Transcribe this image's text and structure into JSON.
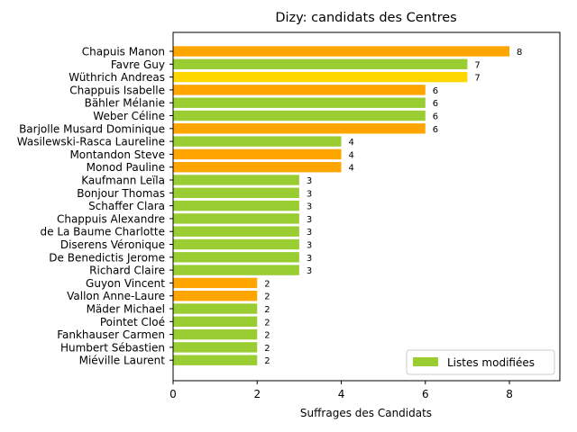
{
  "chart_data": {
    "type": "bar",
    "orientation": "horizontal",
    "title": "Dizy: candidats des Centres",
    "xlabel": "Suffrages des Candidats",
    "ylabel": "",
    "xlim": [
      0,
      9.2
    ],
    "xticks": [
      0,
      2,
      4,
      6,
      8
    ],
    "grid": false,
    "legend": {
      "placement": "lower right",
      "entries": [
        "Listes modifiées"
      ]
    },
    "colors": {
      "orange": "#ffa500",
      "green": "#9acd32",
      "gold": "#ffd700",
      "axis": "#000000"
    },
    "categories": [
      "Chapuis Manon",
      "Favre Guy",
      "Wüthrich Andreas",
      "Chappuis Isabelle",
      "Bähler Mélanie",
      "Weber Céline",
      "Barjolle Musard Dominique",
      "Wasilewski-Rasca Laureline",
      "Montandon Steve",
      "Monod Pauline",
      "Kaufmann Leïla",
      "Bonjour Thomas",
      "Schaffer Clara",
      "Chappuis Alexandre",
      "de La Baume Charlotte",
      "Diserens Véronique",
      "De Benedictis Jerome",
      "Richard Claire",
      "Guyon Vincent",
      "Vallon Anne-Laure",
      "Mäder Michael",
      "Pointet Cloé",
      "Fankhauser Carmen",
      "Humbert Sébastien",
      "Miéville Laurent"
    ],
    "values": [
      8,
      7,
      7,
      6,
      6,
      6,
      6,
      4,
      4,
      4,
      3,
      3,
      3,
      3,
      3,
      3,
      3,
      3,
      2,
      2,
      2,
      2,
      2,
      2,
      2
    ],
    "bar_colors": [
      "orange",
      "green",
      "gold",
      "orange",
      "green",
      "green",
      "orange",
      "green",
      "orange",
      "orange",
      "green",
      "green",
      "green",
      "green",
      "green",
      "green",
      "green",
      "green",
      "orange",
      "orange",
      "green",
      "green",
      "green",
      "green",
      "green"
    ]
  }
}
